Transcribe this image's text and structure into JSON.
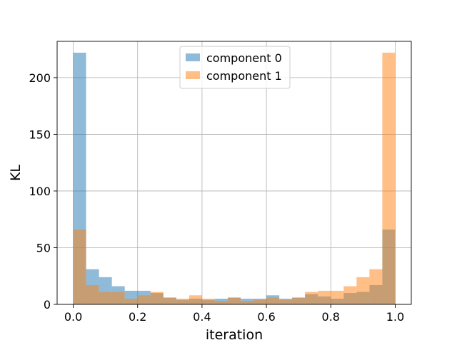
{
  "chart_data": {
    "type": "bar",
    "subtype": "overlapping histogram",
    "title": "",
    "xlabel": "iteration",
    "ylabel": "KL",
    "xlim": [
      -0.05,
      1.05
    ],
    "ylim": [
      0,
      232
    ],
    "xticks": [
      0.0,
      0.2,
      0.4,
      0.6,
      0.8,
      1.0
    ],
    "xtick_labels": [
      "0.0",
      "0.2",
      "0.4",
      "0.6",
      "0.8",
      "1.0"
    ],
    "yticks": [
      0,
      50,
      100,
      150,
      200
    ],
    "ytick_labels": [
      "0",
      "50",
      "100",
      "150",
      "200"
    ],
    "grid": true,
    "legend_position": "top-center",
    "bin_edges": [
      0.0,
      0.04,
      0.08,
      0.12,
      0.16,
      0.2,
      0.24,
      0.28,
      0.32,
      0.36,
      0.4,
      0.44,
      0.48,
      0.52,
      0.56,
      0.6,
      0.64,
      0.68,
      0.72,
      0.76,
      0.8,
      0.84,
      0.88,
      0.92,
      0.96,
      1.0
    ],
    "series": [
      {
        "name": "component 0",
        "color": "#1f77b4",
        "alpha": 0.5,
        "values": [
          222,
          31,
          24,
          16,
          12,
          12,
          10,
          6,
          4,
          5,
          4,
          5,
          6,
          5,
          5,
          8,
          5,
          6,
          9,
          7,
          5,
          10,
          11,
          17,
          66
        ]
      },
      {
        "name": "component 1",
        "color": "#ff7f0e",
        "alpha": 0.5,
        "values": [
          66,
          17,
          11,
          11,
          5,
          8,
          11,
          6,
          5,
          8,
          5,
          3,
          6,
          3,
          4,
          6,
          4,
          6,
          11,
          12,
          12,
          16,
          24,
          31,
          222
        ]
      }
    ]
  }
}
